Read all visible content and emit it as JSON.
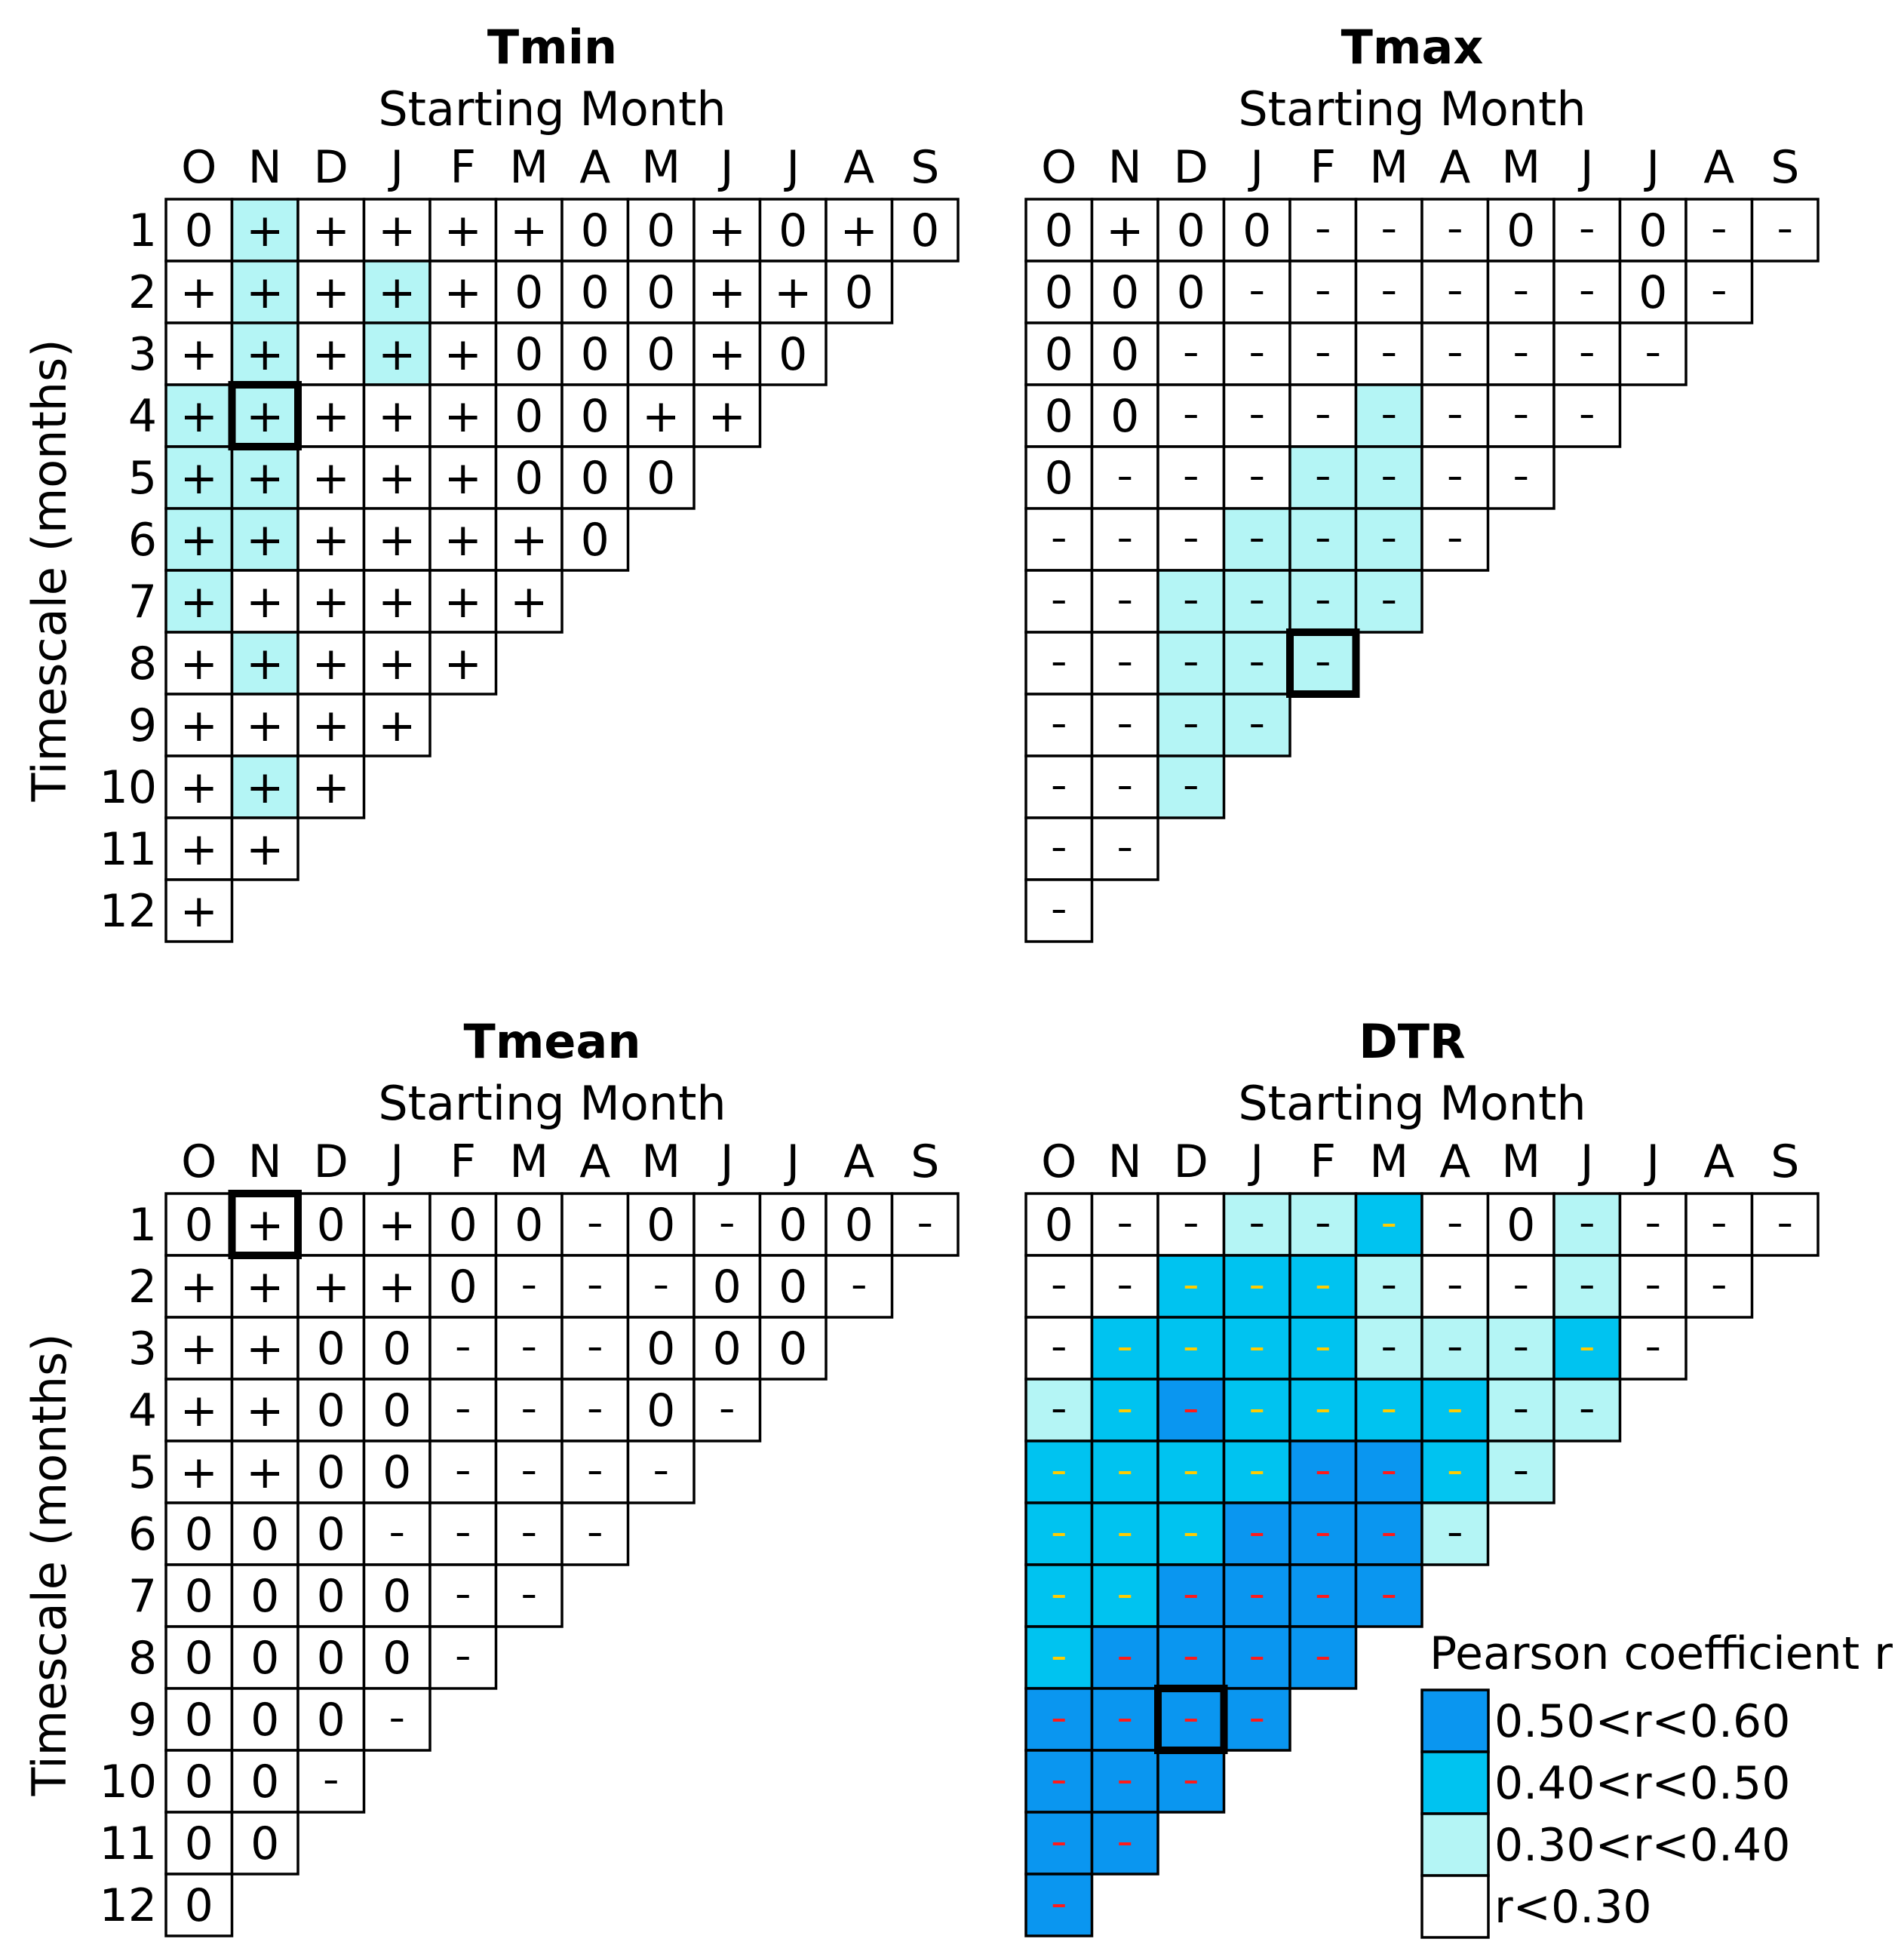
{
  "chart_data": {
    "type": "heatmap",
    "common": {
      "xlabel": "Starting Month",
      "ylabel": "Timescale (months)",
      "months": [
        "O",
        "N",
        "D",
        "J",
        "F",
        "M",
        "A",
        "M",
        "J",
        "J",
        "A",
        "S"
      ],
      "timescales": [
        "1",
        "2",
        "3",
        "4",
        "5",
        "6",
        "7",
        "8",
        "9",
        "10",
        "11",
        "12"
      ]
    },
    "legend": {
      "title": "Pearson coefficient r",
      "position": "bottom-right",
      "entries": [
        {
          "label": "0.50<r<0.60",
          "level": 3,
          "color": "#0a96f0"
        },
        {
          "label": "0.40<r<0.50",
          "level": 2,
          "color": "#00c3f0"
        },
        {
          "label": "0.30<r<0.40",
          "level": 1,
          "color": "#b4f5f5"
        },
        {
          "label": "r<0.30",
          "level": 0,
          "color": "#ffffff"
        }
      ]
    },
    "panels": [
      {
        "title": "Tmin",
        "symbols": [
          [
            "0",
            "+",
            "+",
            "+",
            "+",
            "+",
            "0",
            "0",
            "+",
            "0",
            "+",
            "0"
          ],
          [
            "+",
            "+",
            "+",
            "+",
            "+",
            "0",
            "0",
            "0",
            "+",
            "+",
            "0"
          ],
          [
            "+",
            "+",
            "+",
            "+",
            "+",
            "0",
            "0",
            "0",
            "+",
            "0"
          ],
          [
            "+",
            "+",
            "+",
            "+",
            "+",
            "0",
            "0",
            "+",
            "+"
          ],
          [
            "+",
            "+",
            "+",
            "+",
            "+",
            "0",
            "0",
            "0"
          ],
          [
            "+",
            "+",
            "+",
            "+",
            "+",
            "+",
            "0"
          ],
          [
            "+",
            "+",
            "+",
            "+",
            "+",
            "+"
          ],
          [
            "+",
            "+",
            "+",
            "+",
            "+"
          ],
          [
            "+",
            "+",
            "+",
            "+"
          ],
          [
            "+",
            "+",
            "+"
          ],
          [
            "+",
            "+"
          ],
          [
            "+"
          ]
        ],
        "levels": [
          [
            0,
            1,
            0,
            0,
            0,
            0,
            0,
            0,
            0,
            0,
            0,
            0
          ],
          [
            0,
            1,
            0,
            1,
            0,
            0,
            0,
            0,
            0,
            0,
            0
          ],
          [
            0,
            1,
            0,
            1,
            0,
            0,
            0,
            0,
            0,
            0
          ],
          [
            1,
            1,
            0,
            0,
            0,
            0,
            0,
            0,
            0
          ],
          [
            1,
            1,
            0,
            0,
            0,
            0,
            0,
            0
          ],
          [
            1,
            1,
            0,
            0,
            0,
            0,
            0
          ],
          [
            1,
            0,
            0,
            0,
            0,
            0
          ],
          [
            0,
            1,
            0,
            0,
            0
          ],
          [
            0,
            0,
            0,
            0
          ],
          [
            0,
            1,
            0
          ],
          [
            0,
            0
          ],
          [
            0
          ]
        ],
        "highlight": {
          "row": 3,
          "col": 1
        }
      },
      {
        "title": "Tmax",
        "symbols": [
          [
            "0",
            "+",
            "0",
            "0",
            "-",
            "-",
            "-",
            "0",
            "-",
            "0",
            "-",
            "-"
          ],
          [
            "0",
            "0",
            "0",
            "-",
            "-",
            "-",
            "-",
            "-",
            "-",
            "0",
            "-"
          ],
          [
            "0",
            "0",
            "-",
            "-",
            "-",
            "-",
            "-",
            "-",
            "-",
            "-"
          ],
          [
            "0",
            "0",
            "-",
            "-",
            "-",
            "-",
            "-",
            "-",
            "-"
          ],
          [
            "0",
            "-",
            "-",
            "-",
            "-",
            "-",
            "-",
            "-"
          ],
          [
            "-",
            "-",
            "-",
            "-",
            "-",
            "-",
            "-"
          ],
          [
            "-",
            "-",
            "-",
            "-",
            "-",
            "-"
          ],
          [
            "-",
            "-",
            "-",
            "-",
            "-"
          ],
          [
            "-",
            "-",
            "-",
            "-"
          ],
          [
            "-",
            "-",
            "-"
          ],
          [
            "-",
            "-"
          ],
          [
            "-"
          ]
        ],
        "levels": [
          [
            0,
            0,
            0,
            0,
            0,
            0,
            0,
            0,
            0,
            0,
            0,
            0
          ],
          [
            0,
            0,
            0,
            0,
            0,
            0,
            0,
            0,
            0,
            0,
            0
          ],
          [
            0,
            0,
            0,
            0,
            0,
            0,
            0,
            0,
            0,
            0
          ],
          [
            0,
            0,
            0,
            0,
            0,
            1,
            0,
            0,
            0
          ],
          [
            0,
            0,
            0,
            0,
            1,
            1,
            0,
            0
          ],
          [
            0,
            0,
            0,
            1,
            1,
            1,
            0
          ],
          [
            0,
            0,
            1,
            1,
            1,
            1
          ],
          [
            0,
            0,
            1,
            1,
            1
          ],
          [
            0,
            0,
            1,
            1
          ],
          [
            0,
            0,
            1
          ],
          [
            0,
            0
          ],
          [
            0
          ]
        ],
        "highlight": {
          "row": 7,
          "col": 4
        }
      },
      {
        "title": "Tmean",
        "symbols": [
          [
            "0",
            "+",
            "0",
            "+",
            "0",
            "0",
            "-",
            "0",
            "-",
            "0",
            "0",
            "-"
          ],
          [
            "+",
            "+",
            "+",
            "+",
            "0",
            "-",
            "-",
            "-",
            "0",
            "0",
            "-"
          ],
          [
            "+",
            "+",
            "0",
            "0",
            "-",
            "-",
            "-",
            "0",
            "0",
            "0"
          ],
          [
            "+",
            "+",
            "0",
            "0",
            "-",
            "-",
            "-",
            "0",
            "-"
          ],
          [
            "+",
            "+",
            "0",
            "0",
            "-",
            "-",
            "-",
            "-"
          ],
          [
            "0",
            "0",
            "0",
            "-",
            "-",
            "-",
            "-"
          ],
          [
            "0",
            "0",
            "0",
            "0",
            "-",
            "-"
          ],
          [
            "0",
            "0",
            "0",
            "0",
            "-"
          ],
          [
            "0",
            "0",
            "0",
            "-"
          ],
          [
            "0",
            "0",
            "-"
          ],
          [
            "0",
            "0"
          ],
          [
            "0"
          ]
        ],
        "levels": [
          [
            0,
            0,
            0,
            0,
            0,
            0,
            0,
            0,
            0,
            0,
            0,
            0
          ],
          [
            0,
            0,
            0,
            0,
            0,
            0,
            0,
            0,
            0,
            0,
            0
          ],
          [
            0,
            0,
            0,
            0,
            0,
            0,
            0,
            0,
            0,
            0
          ],
          [
            0,
            0,
            0,
            0,
            0,
            0,
            0,
            0,
            0
          ],
          [
            0,
            0,
            0,
            0,
            0,
            0,
            0,
            0
          ],
          [
            0,
            0,
            0,
            0,
            0,
            0,
            0
          ],
          [
            0,
            0,
            0,
            0,
            0,
            0
          ],
          [
            0,
            0,
            0,
            0,
            0
          ],
          [
            0,
            0,
            0,
            0
          ],
          [
            0,
            0,
            0
          ],
          [
            0,
            0
          ],
          [
            0
          ]
        ],
        "highlight": {
          "row": 0,
          "col": 1
        }
      },
      {
        "title": "DTR",
        "symbols": [
          [
            "0",
            "-",
            "-",
            "-",
            "-",
            "-",
            "-",
            "0",
            "-",
            "-",
            "-",
            "-"
          ],
          [
            "-",
            "-",
            "-",
            "-",
            "-",
            "-",
            "-",
            "-",
            "-",
            "-",
            "-"
          ],
          [
            "-",
            "-",
            "-",
            "-",
            "-",
            "-",
            "-",
            "-",
            "-",
            "-"
          ],
          [
            "-",
            "-",
            "-",
            "-",
            "-",
            "-",
            "-",
            "-",
            "-"
          ],
          [
            "-",
            "-",
            "-",
            "-",
            "-",
            "-",
            "-",
            "-"
          ],
          [
            "-",
            "-",
            "-",
            "-",
            "-",
            "-",
            "-"
          ],
          [
            "-",
            "-",
            "-",
            "-",
            "-",
            "-"
          ],
          [
            "-",
            "-",
            "-",
            "-",
            "-"
          ],
          [
            "-",
            "-",
            "-",
            "-"
          ],
          [
            "-",
            "-",
            "-"
          ],
          [
            "-",
            "-"
          ],
          [
            "-"
          ]
        ],
        "levels": [
          [
            0,
            0,
            0,
            1,
            1,
            2,
            0,
            0,
            1,
            0,
            0,
            0
          ],
          [
            0,
            0,
            2,
            2,
            2,
            1,
            0,
            0,
            1,
            0,
            0
          ],
          [
            0,
            2,
            2,
            2,
            2,
            1,
            1,
            1,
            2,
            0
          ],
          [
            1,
            2,
            3,
            2,
            2,
            2,
            2,
            1,
            1
          ],
          [
            2,
            2,
            2,
            2,
            3,
            3,
            2,
            1
          ],
          [
            2,
            2,
            2,
            3,
            3,
            3,
            1
          ],
          [
            2,
            2,
            3,
            3,
            3,
            3
          ],
          [
            2,
            3,
            3,
            3,
            3
          ],
          [
            3,
            3,
            3,
            3
          ],
          [
            3,
            3,
            3
          ],
          [
            3,
            3
          ],
          [
            3
          ]
        ],
        "highlight": {
          "row": 8,
          "col": 2
        }
      }
    ]
  },
  "colors": {
    "level_0": "#ffffff",
    "level_1": "#b4f5f5",
    "level_2": "#00c3f0",
    "level_3": "#0a96f0",
    "mark_level_2": "#ffcc00",
    "mark_level_3": "#ff1a1a",
    "grid": "#000000"
  }
}
